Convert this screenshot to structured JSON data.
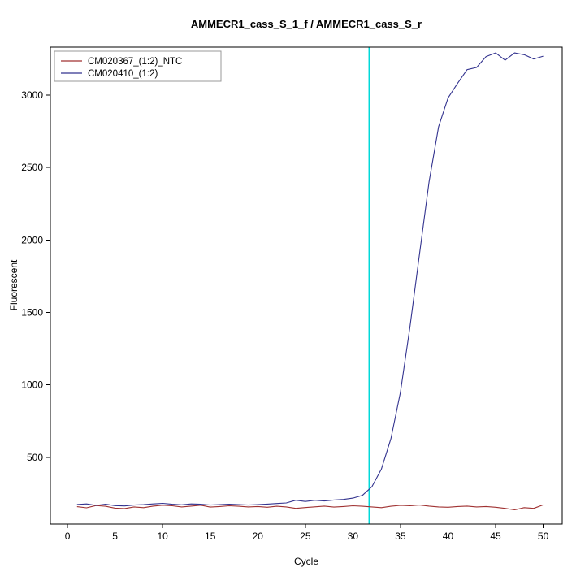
{
  "chart_data": {
    "type": "line",
    "title": "AMMECR1_cass_S_1_f / AMMECR1_cass_S_r",
    "xlabel": "Cycle",
    "ylabel": "Fluorescent",
    "xlim": [
      -1.8,
      52
    ],
    "ylim": [
      40,
      3330
    ],
    "xticks": [
      0,
      5,
      10,
      15,
      20,
      25,
      30,
      35,
      40,
      45,
      50
    ],
    "yticks": [
      500,
      1000,
      1500,
      2000,
      2500,
      3000
    ],
    "grid": false,
    "legend_position": "top-left",
    "threshold_line": {
      "x": 31.7,
      "color": "#00d9d9"
    },
    "x": [
      1,
      2,
      3,
      4,
      5,
      6,
      7,
      8,
      9,
      10,
      11,
      12,
      13,
      14,
      15,
      16,
      17,
      18,
      19,
      20,
      21,
      22,
      23,
      24,
      25,
      26,
      27,
      28,
      29,
      30,
      31,
      32,
      33,
      34,
      35,
      36,
      37,
      38,
      39,
      40,
      41,
      42,
      43,
      44,
      45,
      46,
      47,
      48,
      49,
      50
    ],
    "series": [
      {
        "name": "CM020367_(1:2)_NTC",
        "color": "#a03232",
        "values": [
          160,
          152,
          168,
          163,
          150,
          147,
          158,
          153,
          164,
          170,
          166,
          158,
          164,
          170,
          157,
          161,
          166,
          163,
          158,
          161,
          156,
          163,
          158,
          148,
          154,
          159,
          164,
          157,
          161,
          166,
          163,
          158,
          153,
          163,
          169,
          166,
          171,
          164,
          158,
          156,
          161,
          164,
          158,
          161,
          156,
          148,
          138,
          153,
          148,
          172
        ]
      },
      {
        "name": "CM020410_(1:2)",
        "color": "#33338f",
        "values": [
          175,
          179,
          169,
          177,
          167,
          165,
          171,
          174,
          179,
          183,
          177,
          173,
          179,
          177,
          171,
          174,
          177,
          174,
          171,
          174,
          178,
          182,
          186,
          204,
          196,
          204,
          199,
          206,
          210,
          219,
          238,
          298,
          420,
          630,
          950,
          1400,
          1900,
          2400,
          2780,
          2980,
          3080,
          3175,
          3190,
          3265,
          3290,
          3240,
          3290,
          3278,
          3248,
          3268
        ]
      }
    ]
  }
}
